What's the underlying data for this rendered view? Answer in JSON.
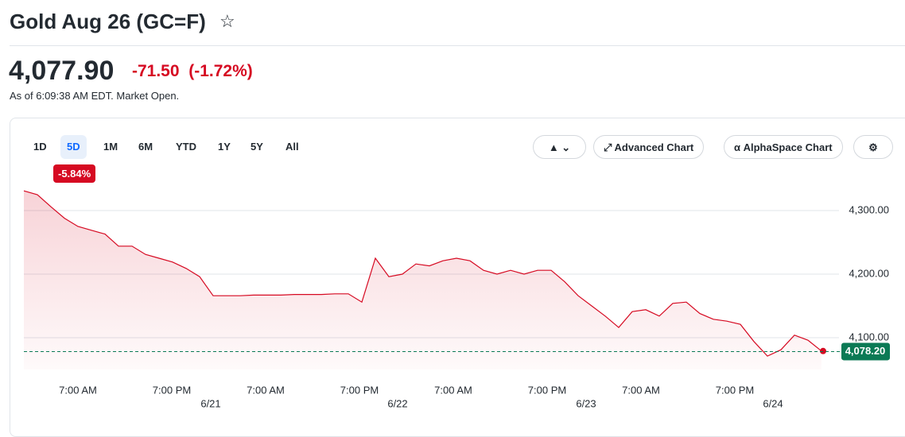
{
  "header": {
    "title": "Gold Aug 26 (GC=F)",
    "price": "4,077.90",
    "change": "-71.50",
    "change_percent": "(-1.72%)",
    "as_of": "As of 6:09:38 AM EDT. Market Open."
  },
  "toolbar": {
    "ranges": [
      "1D",
      "5D",
      "1M",
      "6M",
      "YTD",
      "1Y",
      "5Y",
      "All"
    ],
    "selected": 1,
    "range_change": "-5.84%",
    "buttons": [
      "Advanced Chart",
      "AlphaSpace Chart"
    ]
  },
  "chart_data": {
    "type": "area",
    "color": "#d60a22",
    "values": [
      4331,
      4325,
      4306,
      4288,
      4275,
      4269,
      4263,
      4244,
      4244,
      4231,
      4225,
      4219,
      4209,
      4196,
      4166,
      4166,
      4166,
      4167,
      4167,
      4167,
      4168,
      4168,
      4168,
      4169,
      4169,
      4156,
      4225,
      4196,
      4200,
      4216,
      4213,
      4221,
      4225,
      4221,
      4206,
      4200,
      4206,
      4200,
      4206,
      4206,
      4188,
      4166,
      4150,
      4134,
      4116,
      4141,
      4144,
      4134,
      4154,
      4156,
      4138,
      4129,
      4126,
      4121,
      4094,
      4071,
      4081,
      4104,
      4096,
      4079
    ],
    "ylim": [
      4050,
      4350
    ],
    "yticks": [
      {
        "value": 4300,
        "label": "4,300.00"
      },
      {
        "value": 4200,
        "label": "4,200.00"
      },
      {
        "value": 4100,
        "label": "4,100.00"
      }
    ],
    "current": {
      "value": 4078.2,
      "label": "4,078.20",
      "color": "#0b7a55"
    },
    "time_labels": [
      "7:00 AM",
      "7:00 PM",
      "7:00 AM",
      "7:00 PM",
      "7:00 AM",
      "7:00 PM",
      "7:00 AM",
      "7:00 PM"
    ],
    "date_labels": [
      "6/21",
      "6/22",
      "6/23",
      "6/24"
    ],
    "grid": true
  }
}
